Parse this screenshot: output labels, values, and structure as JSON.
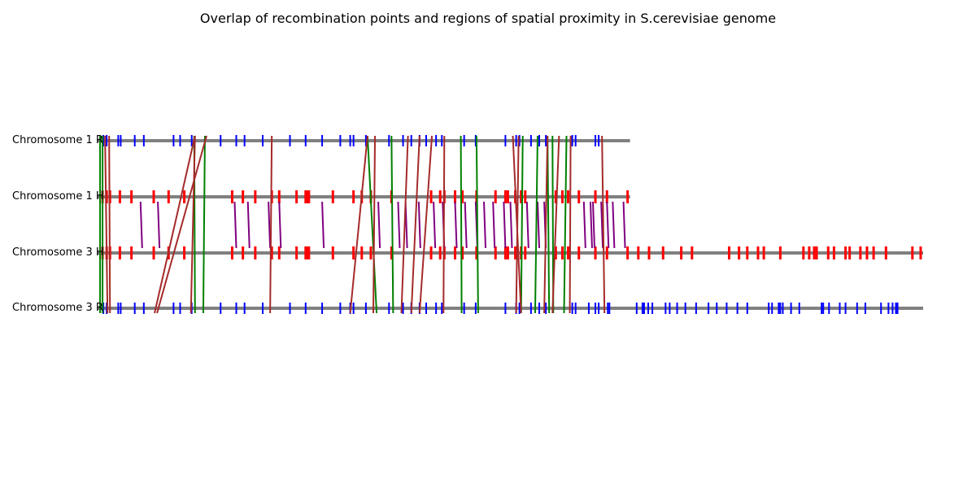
{
  "title": "Overlap of recombination points and regions of spatial proximity in S.cerevisiae genome",
  "colors": {
    "chromosome_line": "#808080",
    "recomb_blue": "#0000ff",
    "recomb_red": "#ff0000",
    "proximity_purple": "#800080",
    "link_green": "#008000",
    "link_brown": "#a52a2a"
  },
  "tracks": [
    {
      "id": "c1r",
      "label": "Chromosome 1 R",
      "mark_color": "blue",
      "length": 0.645
    },
    {
      "id": "c1h",
      "label": "Chromosome 1 H",
      "mark_color": "red",
      "length": 0.645
    },
    {
      "id": "c3h",
      "label": "Chromosome 3 H",
      "mark_color": "red",
      "length": 1.0
    },
    {
      "id": "c3r",
      "label": "Chromosome 3 R",
      "mark_color": "blue",
      "length": 1.0
    }
  ],
  "marks": {
    "c1r": [
      0.007,
      0.011,
      0.025,
      0.028,
      0.045,
      0.056,
      0.092,
      0.1,
      0.114,
      0.149,
      0.168,
      0.178,
      0.2,
      0.233,
      0.252,
      0.272,
      0.294,
      0.306,
      0.31,
      0.325,
      0.353,
      0.37,
      0.38,
      0.39,
      0.398,
      0.41,
      0.417,
      0.444,
      0.458,
      0.494,
      0.507,
      0.511,
      0.525,
      0.535,
      0.543,
      0.575,
      0.579,
      0.603,
      0.607
    ],
    "c1h": [
      0.006,
      0.011,
      0.015,
      0.027,
      0.041,
      0.068,
      0.086,
      0.105,
      0.163,
      0.176,
      0.191,
      0.211,
      0.22,
      0.241,
      0.252,
      0.254,
      0.256,
      0.285,
      0.31,
      0.32,
      0.331,
      0.356,
      0.404,
      0.415,
      0.42,
      0.433,
      0.442,
      0.459,
      0.482,
      0.494,
      0.497,
      0.506,
      0.513,
      0.518,
      0.555,
      0.563,
      0.57,
      0.583,
      0.603,
      0.617,
      0.642
    ]
  },
  "proximity": [
    {
      "track_x": 0.052,
      "width": 0.003
    },
    {
      "track_x": 0.073,
      "width": 0.003
    },
    {
      "track_x": 0.166,
      "width": 0.003
    },
    {
      "track_x": 0.182,
      "width": 0.003
    },
    {
      "track_x": 0.207,
      "width": 0.003
    },
    {
      "track_x": 0.22,
      "width": 0.002
    },
    {
      "track_x": 0.272,
      "width": 0.002
    },
    {
      "track_x": 0.34,
      "width": 0.002
    },
    {
      "track_x": 0.364,
      "width": 0.003
    },
    {
      "track_x": 0.373,
      "width": 0.002
    },
    {
      "track_x": 0.389,
      "width": 0.003
    },
    {
      "track_x": 0.407,
      "width": 0.002
    },
    {
      "track_x": 0.418,
      "width": 0.002
    },
    {
      "track_x": 0.433,
      "width": 0.002
    },
    {
      "track_x": 0.445,
      "width": 0.003
    },
    {
      "track_x": 0.458,
      "width": 0.003
    },
    {
      "track_x": 0.468,
      "width": 0.003
    },
    {
      "track_x": 0.479,
      "width": 0.003
    },
    {
      "track_x": 0.492,
      "width": 0.003
    },
    {
      "track_x": 0.5,
      "width": 0.003
    },
    {
      "track_x": 0.52,
      "width": 0.003
    },
    {
      "track_x": 0.533,
      "width": 0.003
    },
    {
      "track_x": 0.541,
      "width": 0.002
    },
    {
      "track_x": 0.589,
      "width": 0.003
    },
    {
      "track_x": 0.597,
      "width": 0.003
    },
    {
      "track_x": 0.6,
      "width": 0.003
    },
    {
      "track_x": 0.61,
      "width": 0.003
    },
    {
      "track_x": 0.617,
      "width": 0.003
    },
    {
      "track_x": 0.624,
      "width": 0.003
    },
    {
      "track_x": 0.637,
      "width": 0.003
    }
  ],
  "links": {
    "green": [
      [
        0.003,
        0.003
      ],
      [
        0.006,
        0.006
      ],
      [
        0.117,
        0.118
      ],
      [
        0.13,
        0.128
      ],
      [
        0.327,
        0.338
      ],
      [
        0.356,
        0.358
      ],
      [
        0.44,
        0.441
      ],
      [
        0.459,
        0.461
      ],
      [
        0.515,
        0.513
      ],
      [
        0.533,
        0.53
      ],
      [
        0.545,
        0.547
      ],
      [
        0.551,
        0.552
      ],
      [
        0.568,
        0.565
      ]
    ],
    "brown": [
      [
        0.009,
        0.012
      ],
      [
        0.014,
        0.015
      ],
      [
        0.118,
        0.069
      ],
      [
        0.118,
        0.113
      ],
      [
        0.132,
        0.072
      ],
      [
        0.211,
        0.209
      ],
      [
        0.327,
        0.306
      ],
      [
        0.336,
        0.334
      ],
      [
        0.376,
        0.368
      ],
      [
        0.39,
        0.38
      ],
      [
        0.405,
        0.39
      ],
      [
        0.42,
        0.419
      ],
      [
        0.503,
        0.513
      ],
      [
        0.51,
        0.507
      ],
      [
        0.545,
        0.541
      ],
      [
        0.559,
        0.551
      ],
      [
        0.573,
        0.572
      ],
      [
        0.611,
        0.614
      ]
    ]
  }
}
